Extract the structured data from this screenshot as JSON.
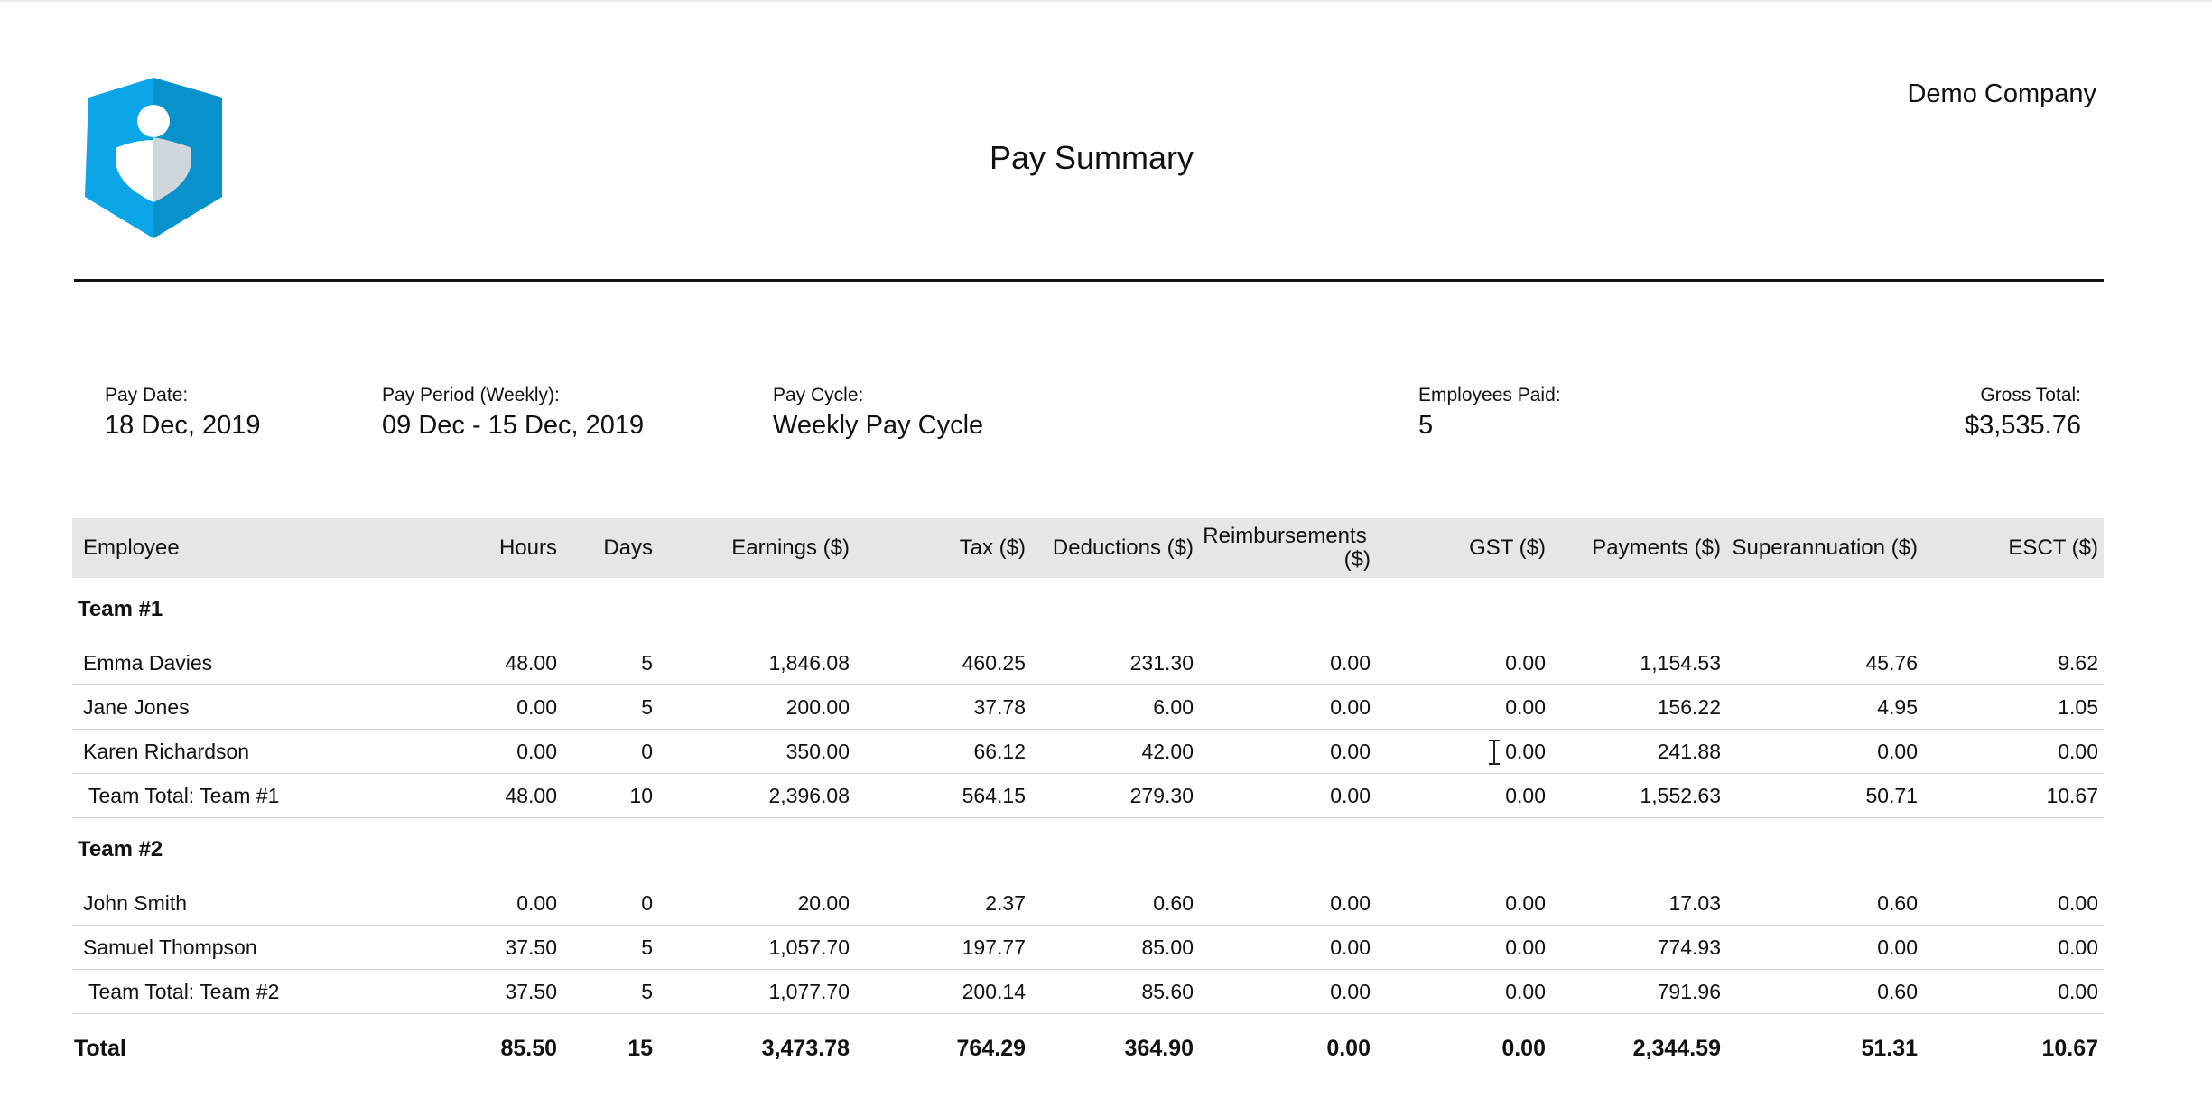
{
  "header": {
    "company": "Demo Company",
    "title": "Pay Summary",
    "logo_icon": "shield-person-logo-icon",
    "logo_color": "#0aa5e6"
  },
  "summary": {
    "pay_date": {
      "label": "Pay Date:",
      "value": "18 Dec, 2019"
    },
    "pay_period": {
      "label": "Pay Period (Weekly):",
      "value": "09 Dec - 15 Dec, 2019"
    },
    "pay_cycle": {
      "label": "Pay Cycle:",
      "value": "Weekly Pay Cycle"
    },
    "employees_paid": {
      "label": "Employees Paid:",
      "value": "5"
    },
    "gross_total": {
      "label": "Gross Total:",
      "value": "$3,535.76"
    }
  },
  "table": {
    "columns": [
      "Employee",
      "Hours",
      "Days",
      "Earnings ($)",
      "Tax ($)",
      "Deductions ($)",
      "Reimbursements",
      "($)",
      "GST ($)",
      "Payments ($)",
      "Superannuation ($)",
      "ESCT ($)"
    ],
    "groups": [
      {
        "name": "Team #1",
        "rows": [
          [
            "Emma Davies",
            "48.00",
            "5",
            "1,846.08",
            "460.25",
            "231.30",
            "0.00",
            "0.00",
            "1,154.53",
            "45.76",
            "9.62"
          ],
          [
            "Jane Jones",
            "0.00",
            "5",
            "200.00",
            "37.78",
            "6.00",
            "0.00",
            "0.00",
            "156.22",
            "4.95",
            "1.05"
          ],
          [
            "Karen Richardson",
            "0.00",
            "0",
            "350.00",
            "66.12",
            "42.00",
            "0.00",
            "0.00",
            "241.88",
            "0.00",
            "0.00"
          ]
        ],
        "total": [
          "Team Total: Team #1",
          "48.00",
          "10",
          "2,396.08",
          "564.15",
          "279.30",
          "0.00",
          "0.00",
          "1,552.63",
          "50.71",
          "10.67"
        ]
      },
      {
        "name": "Team #2",
        "rows": [
          [
            "John Smith",
            "0.00",
            "0",
            "20.00",
            "2.37",
            "0.60",
            "0.00",
            "0.00",
            "17.03",
            "0.60",
            "0.00"
          ],
          [
            "Samuel Thompson",
            "37.50",
            "5",
            "1,057.70",
            "197.77",
            "85.00",
            "0.00",
            "0.00",
            "774.93",
            "0.00",
            "0.00"
          ]
        ],
        "total": [
          "Team Total: Team #2",
          "37.50",
          "5",
          "1,077.70",
          "200.14",
          "85.60",
          "0.00",
          "0.00",
          "791.96",
          "0.60",
          "0.00"
        ]
      }
    ],
    "grand_total": [
      "Total",
      "85.50",
      "15",
      "3,473.78",
      "764.29",
      "364.90",
      "0.00",
      "0.00",
      "2,344.59",
      "51.31",
      "10.67"
    ]
  },
  "cursor_icon": "text-cursor-icon"
}
